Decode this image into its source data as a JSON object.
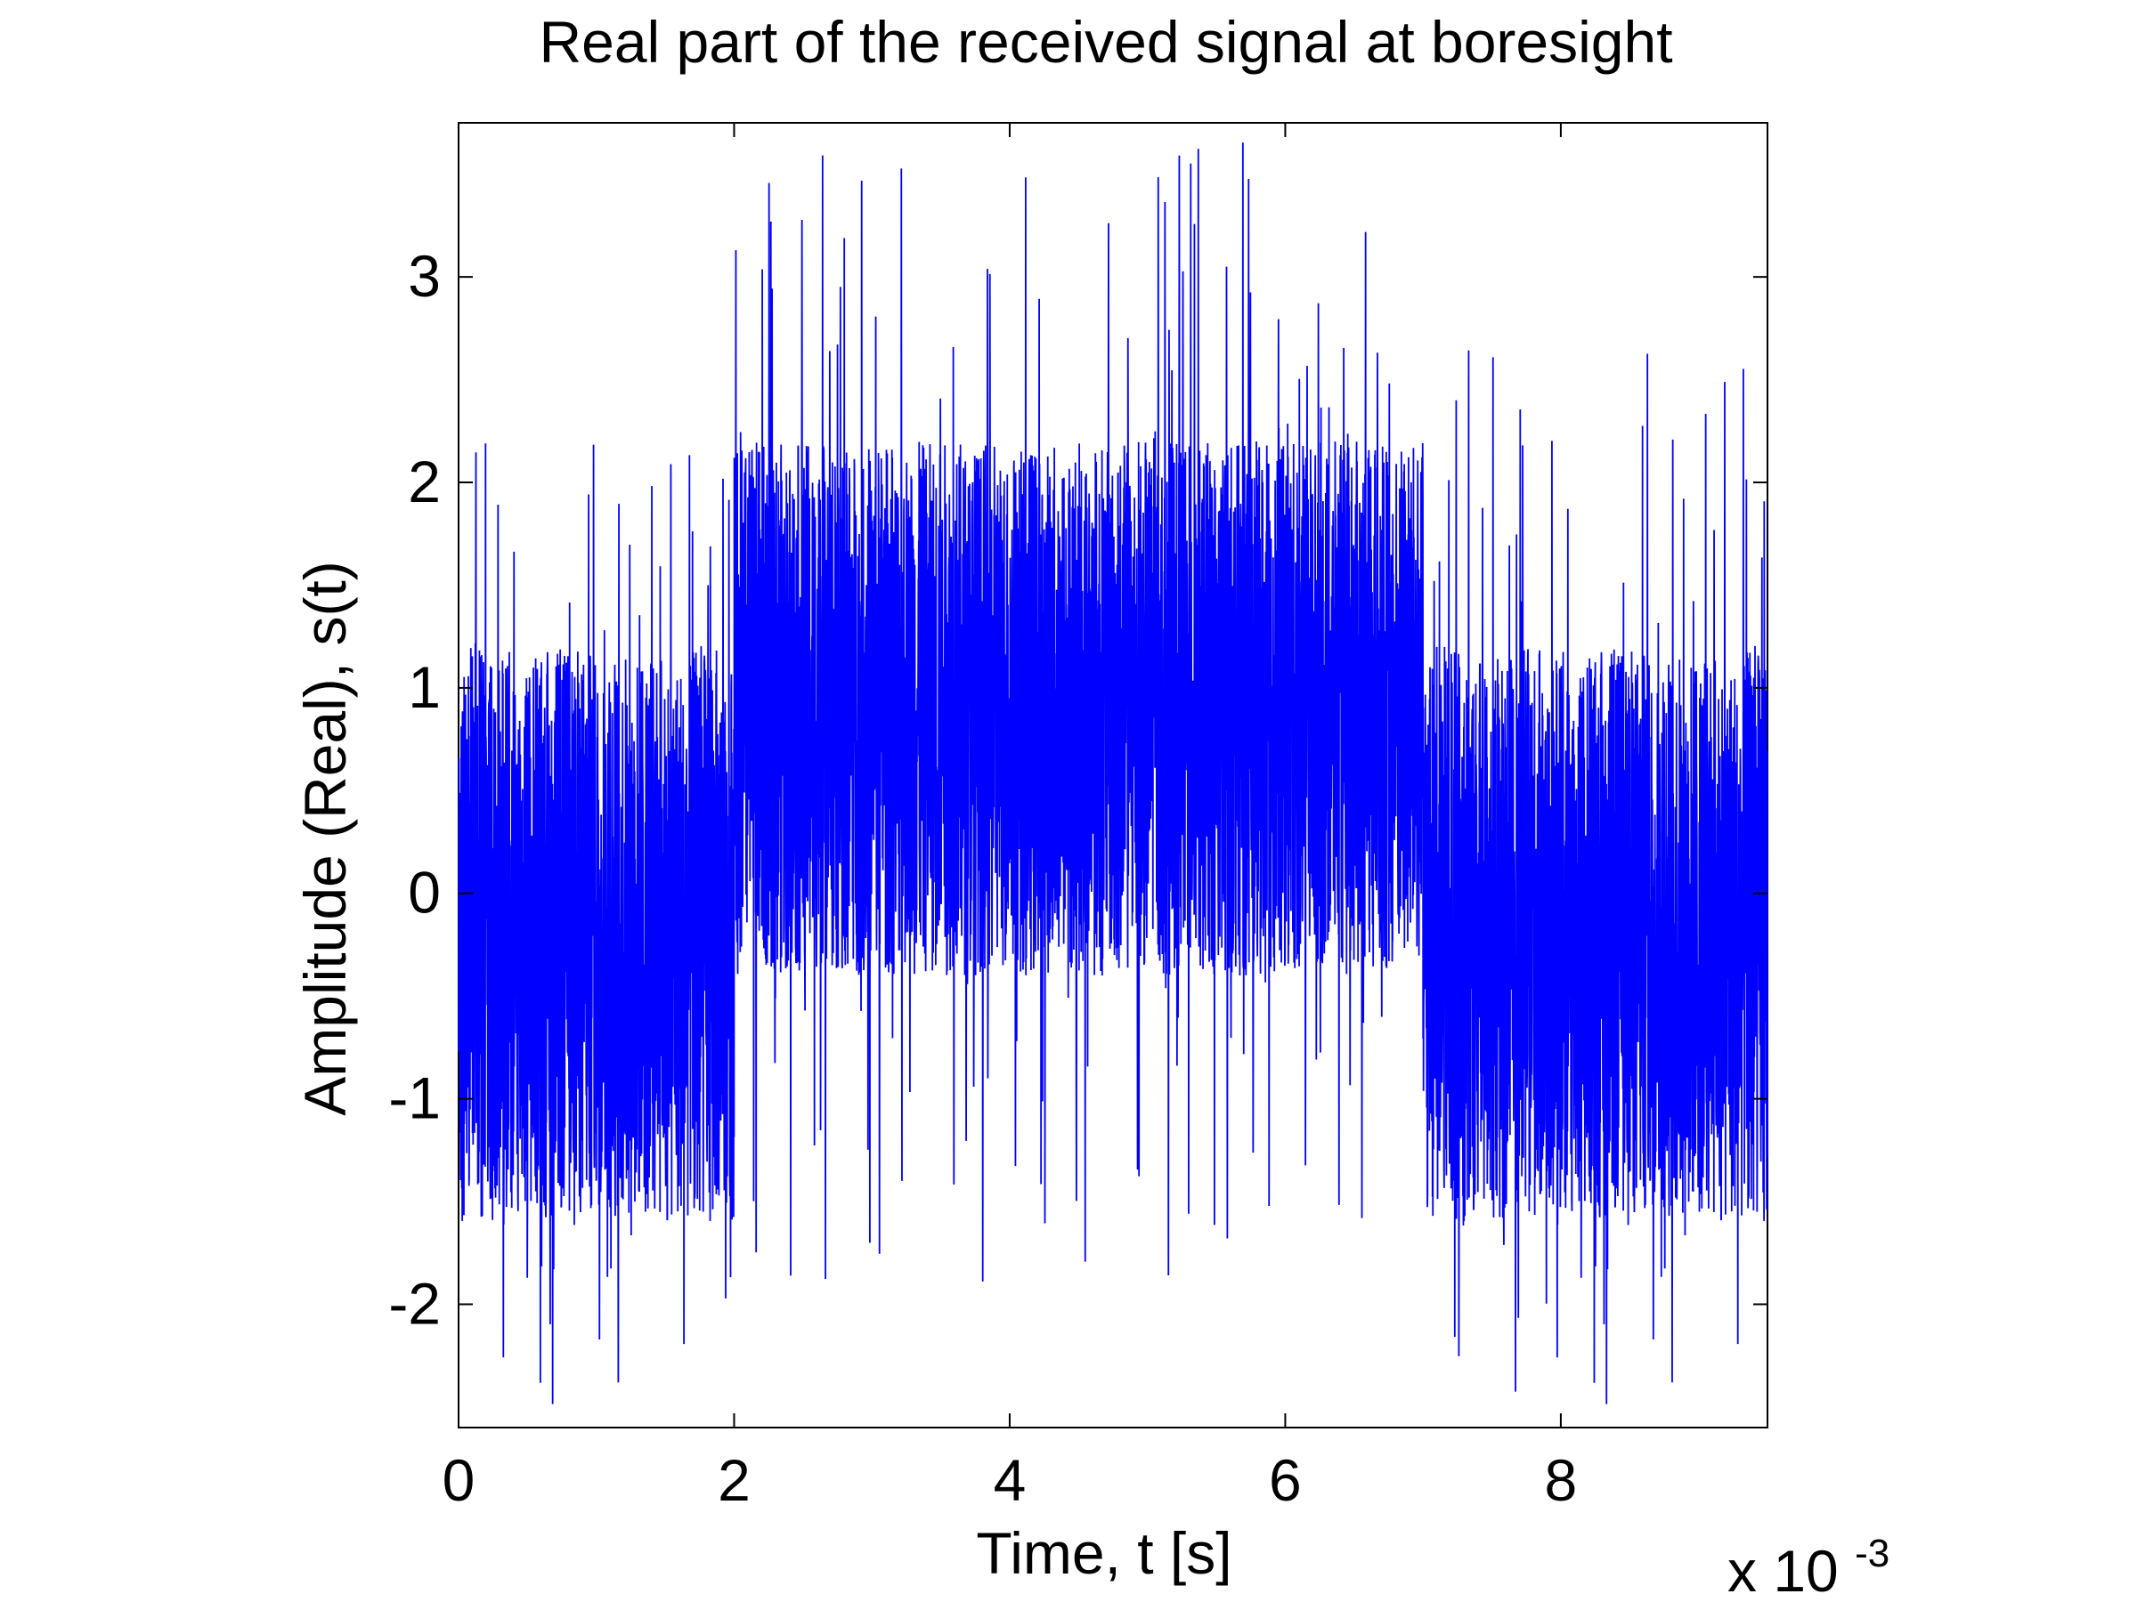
{
  "chart_data": {
    "type": "line",
    "title": "Real part of the received signal at boresight",
    "xlabel": "Time, t [s]",
    "ylabel": "Amplitude (Real), s(t)",
    "x_exponent_base": "x 10",
    "x_exponent_power": "-3",
    "xlim": [
      0,
      9.5
    ],
    "ylim": [
      -2.6,
      3.75
    ],
    "x_ticks": [
      0,
      2,
      4,
      6,
      8
    ],
    "x_tick_labels": [
      "0",
      "2",
      "4",
      "6",
      "8"
    ],
    "y_ticks": [
      -2,
      -1,
      0,
      1,
      2,
      3
    ],
    "y_tick_labels": [
      "-2",
      "-1",
      "0",
      "1",
      "2",
      "3"
    ],
    "grid": false,
    "line_color": "#0000ff",
    "x_units_scale": 0.001,
    "series": [
      {
        "segments": [
          {
            "x_start": 0.0,
            "x_end": 2.0,
            "envelope_low": -1.6,
            "envelope_high": 1.2,
            "spike_min": -2.55,
            "spike_max": 2.2
          },
          {
            "x_start": 2.0,
            "x_end": 7.0,
            "envelope_low": -0.4,
            "envelope_high": 2.2,
            "spike_min": -1.9,
            "spike_max": 3.75
          },
          {
            "x_start": 7.0,
            "x_end": 9.5,
            "envelope_low": -1.6,
            "envelope_high": 1.2,
            "spike_min": -2.55,
            "spike_max": 2.65
          }
        ]
      }
    ]
  }
}
